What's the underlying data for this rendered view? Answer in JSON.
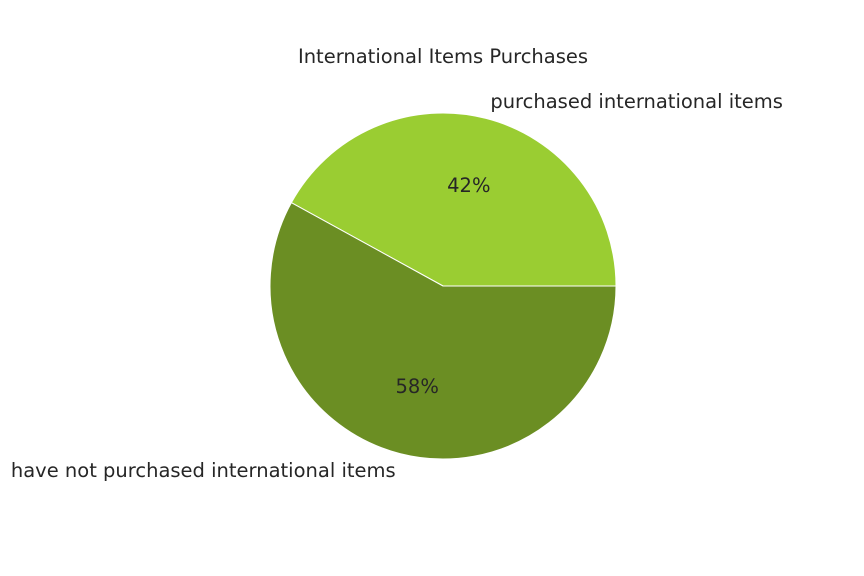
{
  "chart_data": {
    "type": "pie",
    "title": "International Items Purchases",
    "slices": [
      {
        "label": "purchased international items",
        "value": 42,
        "percent_label": "42%",
        "color": "#9acd32"
      },
      {
        "label": "have not purchased international items",
        "value": 58,
        "percent_label": "58%",
        "color": "#6b8e23"
      }
    ],
    "legend": "none"
  }
}
